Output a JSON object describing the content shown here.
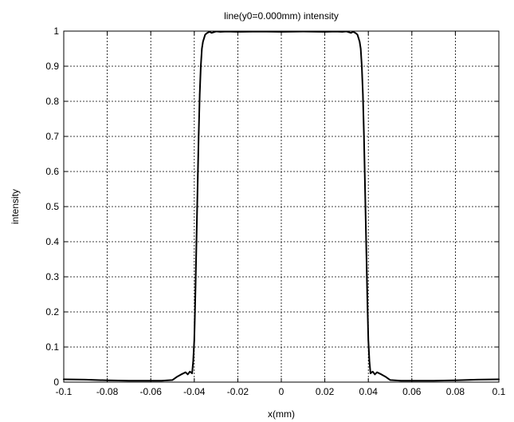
{
  "chart_data": {
    "type": "line",
    "title": "line(y0=0.000mm) intensity",
    "xlabel": "x(mm)",
    "ylabel": "intensity",
    "xlim": [
      -0.1,
      0.1
    ],
    "ylim": [
      0,
      1
    ],
    "grid": true,
    "x_ticks": [
      -0.1,
      -0.08,
      -0.06,
      -0.04,
      -0.02,
      0,
      0.02,
      0.04,
      0.06,
      0.08,
      0.1
    ],
    "x_tick_labels": [
      "-0.1",
      "-0.08",
      "-0.06",
      "-0.04",
      "-0.02",
      "0",
      "0.02",
      "0.04",
      "0.06",
      "0.08",
      "0.1"
    ],
    "y_ticks": [
      0,
      0.1,
      0.2,
      0.3,
      0.4,
      0.5,
      0.6,
      0.7,
      0.8,
      0.9,
      1
    ],
    "y_tick_labels": [
      "0",
      "0.1",
      "0.2",
      "0.3",
      "0.4",
      "0.5",
      "0.6",
      "0.7",
      "0.8",
      "0.9",
      "1"
    ],
    "series": [
      {
        "x": [
          -0.1,
          -0.09,
          -0.08,
          -0.07,
          -0.06,
          -0.055,
          -0.05,
          -0.048,
          -0.046,
          -0.044,
          -0.043,
          -0.042,
          -0.041,
          -0.0405,
          -0.04,
          -0.0395,
          -0.039,
          -0.0385,
          -0.038,
          -0.0375,
          -0.037,
          -0.0365,
          -0.036,
          -0.0355,
          -0.035,
          -0.034,
          -0.033,
          -0.032,
          -0.031,
          -0.03,
          -0.028,
          -0.025,
          -0.02,
          -0.01,
          0,
          0.01,
          0.02,
          0.025,
          0.028,
          0.03,
          0.031,
          0.032,
          0.033,
          0.034,
          0.035,
          0.0355,
          0.036,
          0.0365,
          0.037,
          0.0375,
          0.038,
          0.0385,
          0.039,
          0.0395,
          0.04,
          0.0405,
          0.041,
          0.042,
          0.043,
          0.044,
          0.046,
          0.048,
          0.05,
          0.055,
          0.06,
          0.07,
          0.08,
          0.09,
          0.1
        ],
        "y": [
          0.008,
          0.007,
          0.005,
          0.004,
          0.004,
          0.004,
          0.006,
          0.015,
          0.022,
          0.028,
          0.022,
          0.03,
          0.025,
          0.06,
          0.12,
          0.25,
          0.4,
          0.55,
          0.7,
          0.82,
          0.9,
          0.95,
          0.97,
          0.98,
          0.99,
          0.995,
          0.998,
          0.995,
          0.997,
          0.999,
          0.998,
          0.999,
          0.998,
          0.999,
          0.998,
          0.999,
          0.998,
          0.999,
          0.998,
          0.999,
          0.997,
          0.995,
          0.998,
          0.995,
          0.99,
          0.98,
          0.97,
          0.95,
          0.9,
          0.82,
          0.7,
          0.55,
          0.4,
          0.25,
          0.12,
          0.06,
          0.025,
          0.03,
          0.022,
          0.028,
          0.022,
          0.015,
          0.006,
          0.004,
          0.004,
          0.004,
          0.005,
          0.007,
          0.008
        ]
      }
    ]
  }
}
